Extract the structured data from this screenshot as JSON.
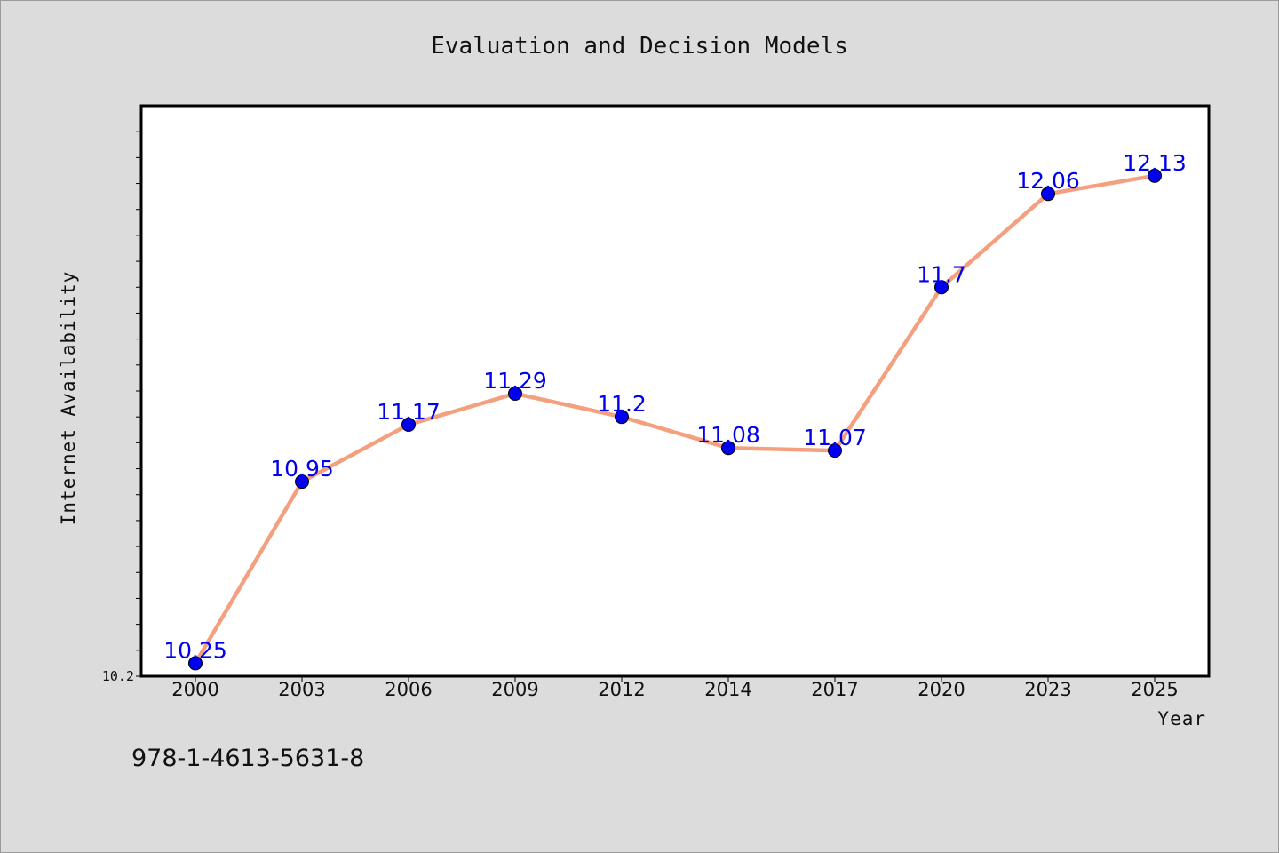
{
  "chart_data": {
    "type": "line",
    "title": "Evaluation and Decision Models",
    "xlabel": "Year",
    "ylabel": "Internet Availability",
    "categories": [
      "2000",
      "2003",
      "2006",
      "2009",
      "2012",
      "2014",
      "2017",
      "2020",
      "2023",
      "2025"
    ],
    "series": [
      {
        "values": [
          10.25,
          10.95,
          11.17,
          11.29,
          11.2,
          11.08,
          11.07,
          11.7,
          12.06,
          12.13
        ]
      }
    ],
    "ylim": [
      10.2,
      12.4
    ],
    "y_tick_labels": [
      "10.2"
    ],
    "y_minor_tick_step": 0.1,
    "data_labels": true,
    "grid": false,
    "legend": "none",
    "colors": {
      "line": "#f4a07f",
      "marker": "#0000ee",
      "data_label": "#0000ee",
      "background": "#dcdcdc",
      "plot_background": "#ffffff"
    }
  },
  "footnote": "978-1-4613-5631-8"
}
